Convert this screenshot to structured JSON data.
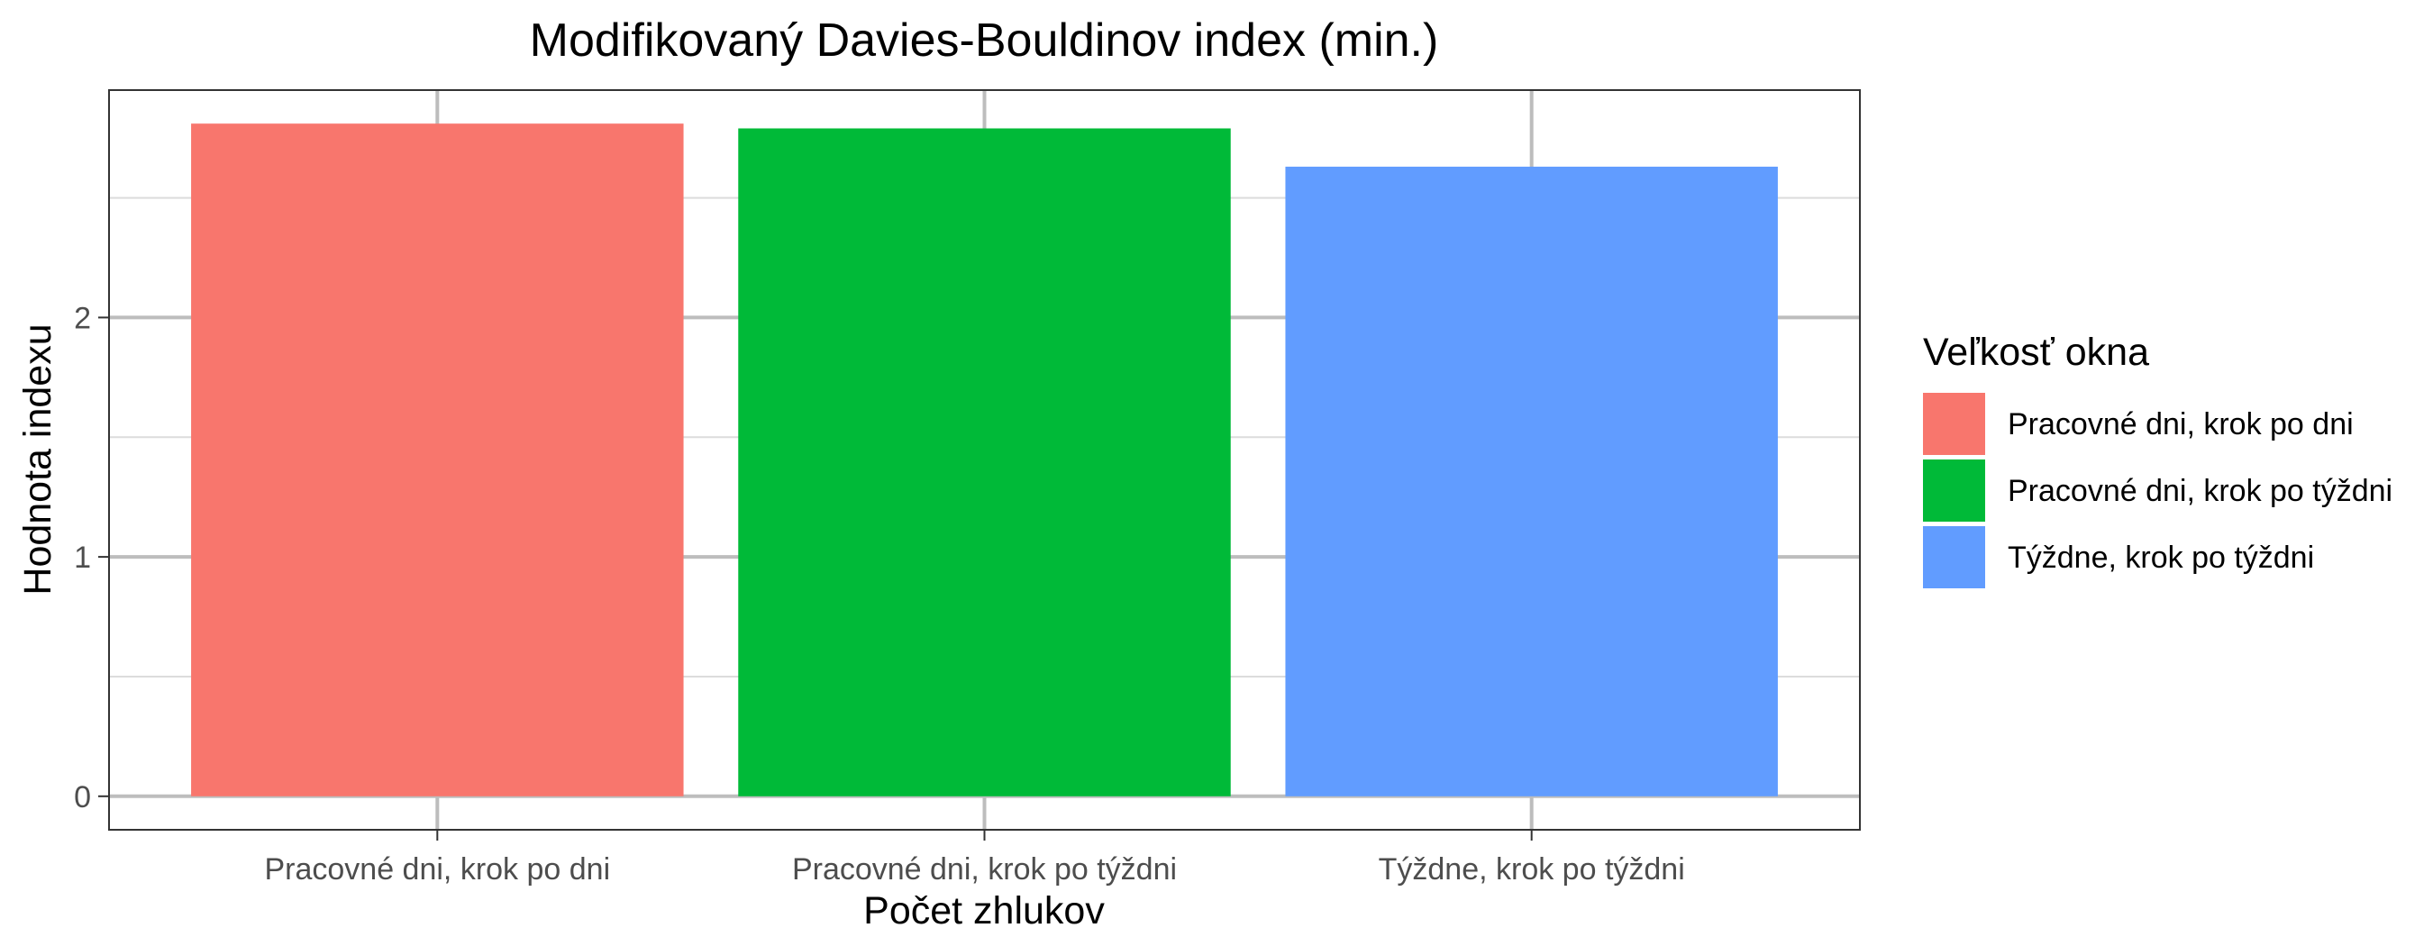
{
  "chart_data": {
    "type": "bar",
    "title": "Modifikovaný Davies-Bouldinov index (min.)",
    "xlabel": "Počet zhlukov",
    "ylabel": "Hodnota indexu",
    "categories": [
      "Pracovné dni, krok po dni",
      "Pracovné dni, krok po týždni",
      "Týždne, krok po týždni"
    ],
    "values": [
      2.81,
      2.79,
      2.63
    ],
    "colors": [
      "#F8766D",
      "#00BA38",
      "#619CFF"
    ],
    "ylim": [
      -0.14,
      2.95
    ],
    "yticks": [
      0,
      1,
      2
    ],
    "grid": true,
    "legend": {
      "title": "Veľkosť okna",
      "position": "right",
      "entries": [
        "Pracovné dni, krok po dni",
        "Pracovné dni, krok po týždni",
        "Týždne, krok po týždni"
      ]
    }
  }
}
